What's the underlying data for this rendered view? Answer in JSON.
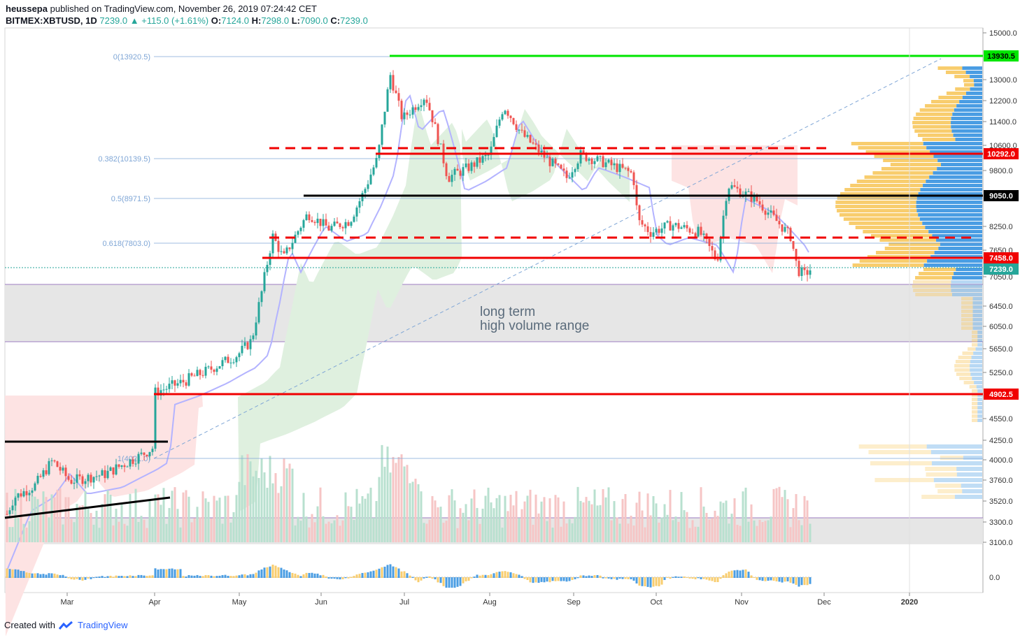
{
  "header": {
    "author": "heussepa",
    "published": "published on TradingView.com, November 26, 2019 07:24:42 CET",
    "symbol": "BITMEX:XBTUSD, 1D",
    "last": "7239.0",
    "change": "+115.0 (+1.61%)",
    "o_label": "O:",
    "o": "7124.0",
    "h_label": "H:",
    "h": "7298.0",
    "l_label": "L:",
    "l": "7090.0",
    "c_label": "C:",
    "c": "7239.0"
  },
  "footer": {
    "created": "Created with",
    "brand": "TradingView"
  },
  "colors": {
    "up": "#26a69a",
    "down": "#ef5350",
    "green_line": "#00e600",
    "red_line": "#f00000",
    "black_line": "#000000",
    "fib": "#7fa6d6",
    "cloud_green": "#dff0df",
    "cloud_red": "#fde3e3",
    "conversion": "#b3b3ff",
    "volume_up": "#b8e0cf",
    "volume_down": "#f6c5c5",
    "vp_yellow": "#f8cd6e",
    "vp_blue": "#4a9de3"
  },
  "chart_data": {
    "type": "candlestick",
    "title": "BITMEX:XBTUSD, 1D",
    "x_ticks": [
      "Mar",
      "Apr",
      "May",
      "Jun",
      "Jul",
      "Aug",
      "Sep",
      "Oct",
      "Nov",
      "Dec",
      "2020"
    ],
    "y_ticks": [
      "15000.0",
      "13000.0",
      "12200.0",
      "11400.0",
      "10600.0",
      "9800.0",
      "8250.0",
      "7650.0",
      "7050.0",
      "6450.0",
      "6050.0",
      "5650.0",
      "5250.0",
      "4550.0",
      "4250.0",
      "4000.0",
      "3760.0",
      "3520.0",
      "3300.0",
      "3100.0"
    ],
    "oscillator_tick": "0.0",
    "price_badges": [
      {
        "label": "13930.5",
        "color": "#00e600",
        "text_color": "#000000"
      },
      {
        "label": "10292.0",
        "color": "#f00000",
        "text_color": "#ffffff"
      },
      {
        "label": "9050.0",
        "color": "#000000",
        "text_color": "#ffffff"
      },
      {
        "label": "7458.0",
        "color": "#f00000",
        "text_color": "#ffffff"
      },
      {
        "label": "7239.0",
        "color": "#26a69a",
        "text_color": "#ffffff"
      },
      {
        "label": "4902.5",
        "color": "#f00000",
        "text_color": "#ffffff"
      }
    ],
    "fib_labels": [
      "0(13920.5)",
      "0.382(10139.5)",
      "0.5(8971.5)",
      "0.618(7803.0)",
      "1(4021.0)"
    ],
    "annotation": [
      "long term",
      "high volume range"
    ],
    "last_price": 7239.0,
    "high": 13930.5,
    "levels": [
      13930.5,
      10292.0,
      9050.0,
      7458.0,
      4902.5
    ],
    "high_volume_range": [
      5780,
      6900
    ]
  }
}
